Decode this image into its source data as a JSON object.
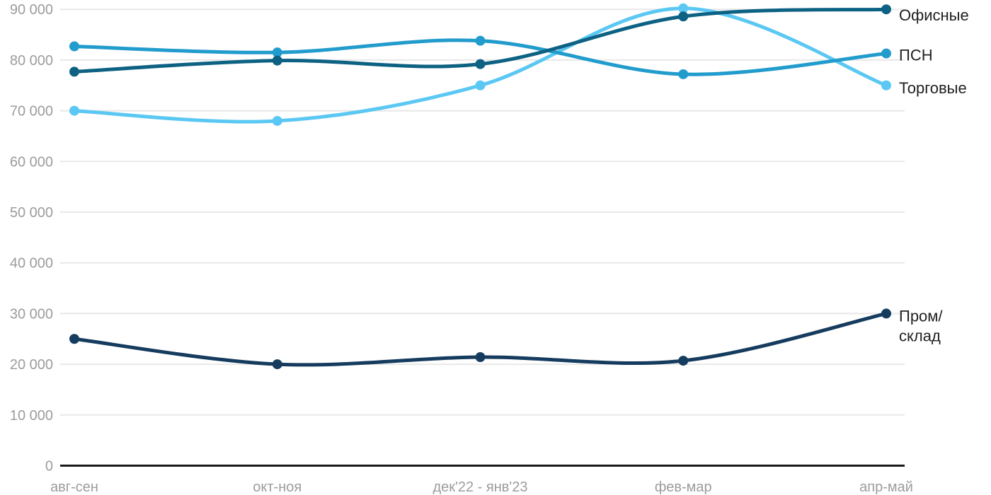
{
  "chart_data": {
    "type": "line",
    "title": "",
    "xlabel": "",
    "ylabel": "",
    "categories": [
      "авг-сен",
      "окт-ноя",
      "дек'22 - янв'23",
      "фев-мар",
      "апр-май"
    ],
    "series": [
      {
        "id": "ofisnye",
        "name": "Офисные",
        "label": "Офисные",
        "color": "#0d6183",
        "values": [
          77700,
          79900,
          79200,
          88600,
          90000
        ],
        "label_dy": 8
      },
      {
        "id": "psn",
        "name": "ПСН",
        "label": "ПСН",
        "color": "#219ccc",
        "values": [
          82700,
          81500,
          83800,
          77200,
          81300
        ],
        "label_dy": 2
      },
      {
        "id": "torgovye",
        "name": "Торговые",
        "label": "Торговые",
        "color": "#5bc8f3",
        "values": [
          70000,
          68000,
          75000,
          90200,
          75000
        ],
        "label_dy": 3
      },
      {
        "id": "prom-sklad",
        "name": "Пром/склад",
        "label": "Пром/\nсклад",
        "color": "#153c5e",
        "values": [
          25000,
          20000,
          21400,
          20700,
          30000
        ],
        "label_dy": 3
      }
    ],
    "yticks": [
      0,
      10000,
      20000,
      30000,
      40000,
      50000,
      60000,
      70000,
      80000,
      90000
    ],
    "ylim": [
      0,
      90000
    ],
    "grid": true,
    "vertical_grid": false,
    "legend_position": "right-of-last-point",
    "style": {
      "grid_color": "#e8e8e8",
      "axis_color": "#1a1a1a",
      "tick_text_color": "#9c9c9c",
      "legend_text_color": "#212121",
      "background": "#ffffff"
    }
  }
}
